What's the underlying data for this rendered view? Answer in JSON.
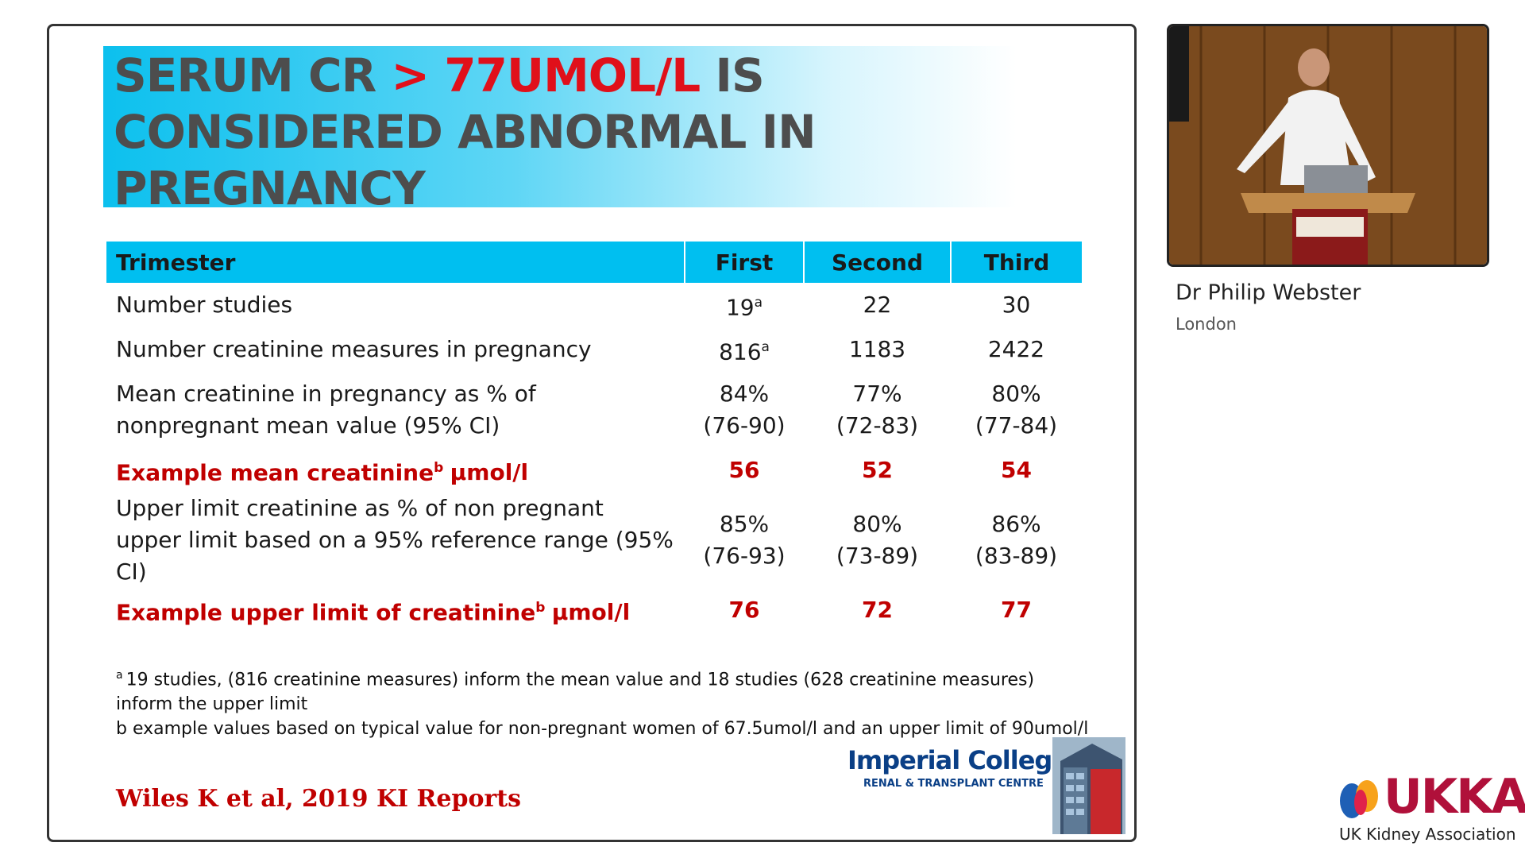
{
  "slide": {
    "title_parts": [
      {
        "text": "SERUM CR ",
        "color": "#4d4d4d"
      },
      {
        "text": "> 77UMOL/L",
        "color": "#e0101a"
      },
      {
        "text": " IS CONSIDERED ABNORMAL IN PREGNANCY",
        "color": "#4d4d4d"
      }
    ],
    "table": {
      "header": [
        "Trimester",
        "First",
        "Second",
        "Third"
      ],
      "emphasis_color": "#c00000",
      "rows": [
        {
          "label": "Number studies",
          "cells": [
            {
              "text": "19",
              "sup": "a"
            },
            "22",
            "30"
          ]
        },
        {
          "label": "Number creatinine measures in pregnancy",
          "cells": [
            {
              "text": "816",
              "sup": "a"
            },
            "1183",
            "2422"
          ]
        },
        {
          "label": "Mean creatinine in pregnancy as % of nonpregnant mean value (95% CI)",
          "cells": [
            [
              "84%",
              "(76-90)"
            ],
            [
              "77%",
              "(72-83)"
            ],
            [
              "80%",
              "(77-84)"
            ]
          ]
        },
        {
          "label": "Example mean creatinine",
          "label_sup": "b",
          "label_suffix": "µmol/l",
          "cells": [
            "56",
            "52",
            "54"
          ],
          "emphasis": true
        },
        {
          "label": "Upper limit creatinine as % of non pregnant upper limit based on a 95% reference range (95% CI)",
          "cells": [
            [
              "85%",
              "(76-93)"
            ],
            [
              "80%",
              "(73-89)"
            ],
            [
              "86%",
              "(83-89)"
            ]
          ]
        },
        {
          "label": "Example upper limit of creatinine",
          "label_sup": "b",
          "label_suffix": "µmol/l",
          "cells": [
            "76",
            "72",
            "77"
          ],
          "emphasis": true
        }
      ]
    },
    "footnotes": [
      {
        "marker": "a",
        "text": "19 studies, (816 creatinine measures) inform the mean value and 18 studies (628 creatinine measures) inform the upper limit"
      },
      {
        "text": "b example values based on typical value for non-pregnant women of 67.5umol/l and an upper limit of 90umol/l"
      }
    ],
    "citation": "Wiles K et al, 2019 KI Reports",
    "logo": {
      "name": "Imperial College",
      "subtitle": "RENAL & TRANSPLANT CENTRE"
    }
  },
  "speaker": {
    "name": "Dr Philip Webster",
    "location": "London"
  },
  "brand": {
    "name": "UKKA",
    "subtitle": "UK Kidney Association"
  }
}
